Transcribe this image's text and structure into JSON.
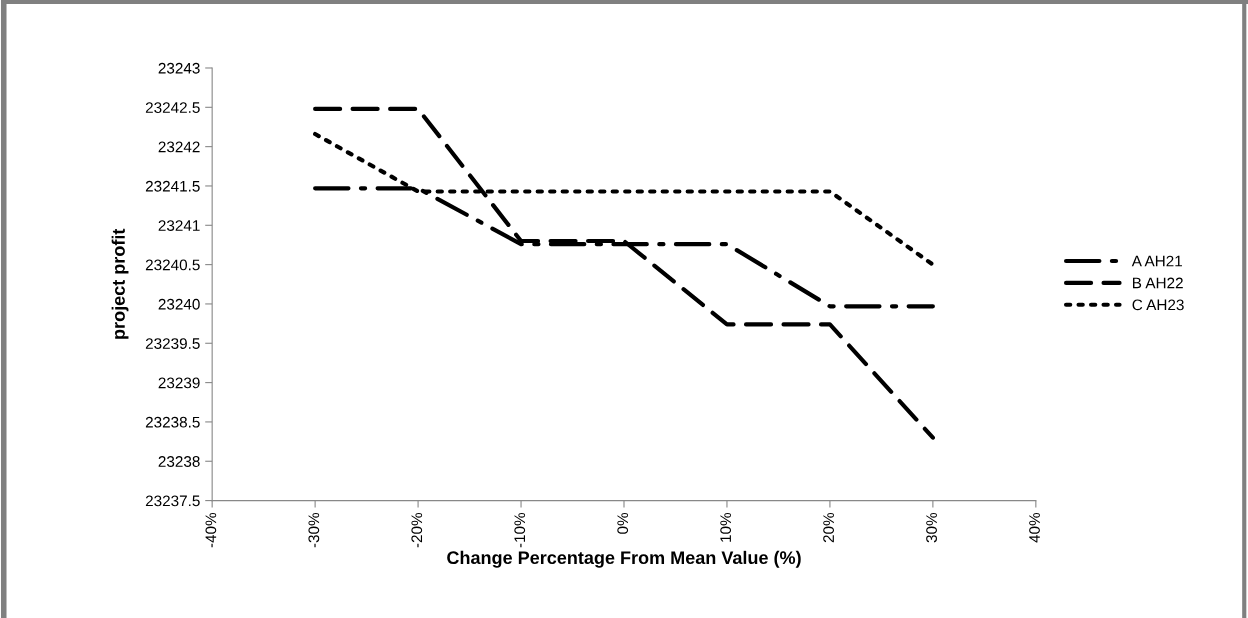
{
  "chart_data": {
    "type": "line",
    "xlabel": "Change Percentage From Mean Value (%)",
    "ylabel": "project profit",
    "x": [
      -30,
      -20,
      -10,
      0,
      10,
      20,
      30
    ],
    "series": [
      {
        "name": "A AH21",
        "color": "#000000",
        "line_style": "dashdot",
        "values": [
          23241.47,
          23241.47,
          23240.76,
          23240.76,
          23240.76,
          23239.97,
          23239.97
        ]
      },
      {
        "name": "B AH22",
        "color": "#000000",
        "line_style": "dashed",
        "values": [
          23242.48,
          23242.48,
          23240.8,
          23240.8,
          23239.74,
          23239.74,
          23238.3
        ]
      },
      {
        "name": "C AH23",
        "color": "#000000",
        "line_style": "dotted",
        "values": [
          23242.16,
          23241.43,
          23241.43,
          23241.43,
          23241.43,
          23241.43,
          23240.5
        ]
      }
    ],
    "xlim": [
      -40,
      40
    ],
    "xticks": [
      {
        "value": -40,
        "label": "-40%"
      },
      {
        "value": -30,
        "label": "-30%"
      },
      {
        "value": -20,
        "label": "-20%"
      },
      {
        "value": -10,
        "label": "-10%"
      },
      {
        "value": 0,
        "label": "0%"
      },
      {
        "value": 10,
        "label": "10%"
      },
      {
        "value": 20,
        "label": "20%"
      },
      {
        "value": 30,
        "label": "30%"
      },
      {
        "value": 40,
        "label": "40%"
      }
    ],
    "ylim": [
      23237.5,
      23243
    ],
    "yticks": [
      23237.5,
      23238,
      23238.5,
      23239,
      23239.5,
      23240,
      23240.5,
      23241,
      23241.5,
      23242,
      23242.5,
      23243
    ],
    "grid": false,
    "legend": "right",
    "marker": "none"
  }
}
